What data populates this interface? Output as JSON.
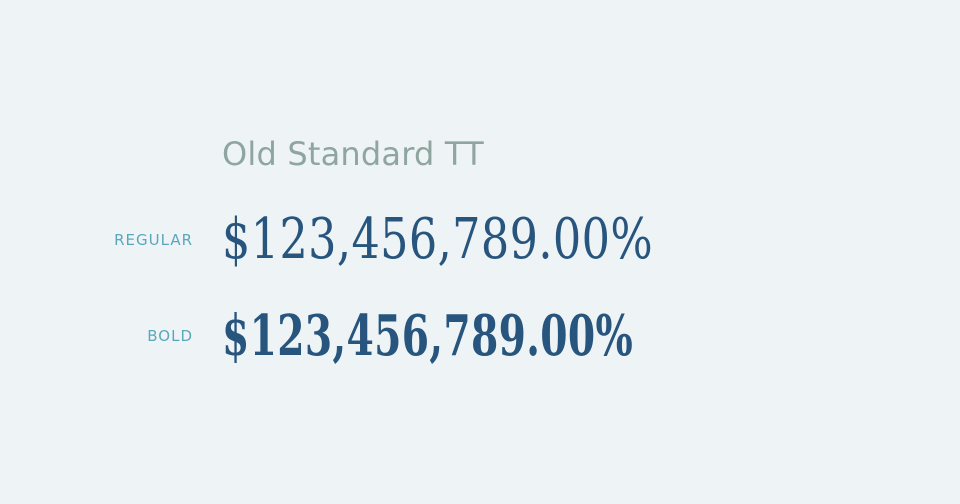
{
  "specimen": {
    "font_name": "Old Standard TT",
    "rows": [
      {
        "label": "REGULAR",
        "sample": "$123,456,789.00%"
      },
      {
        "label": "BOLD",
        "sample": "$123,456,789.00%"
      }
    ]
  },
  "colors": {
    "background": "#eef4f6",
    "font_name": "#8fa59f",
    "label": "#5aa7bd",
    "sample": "#27557e"
  }
}
